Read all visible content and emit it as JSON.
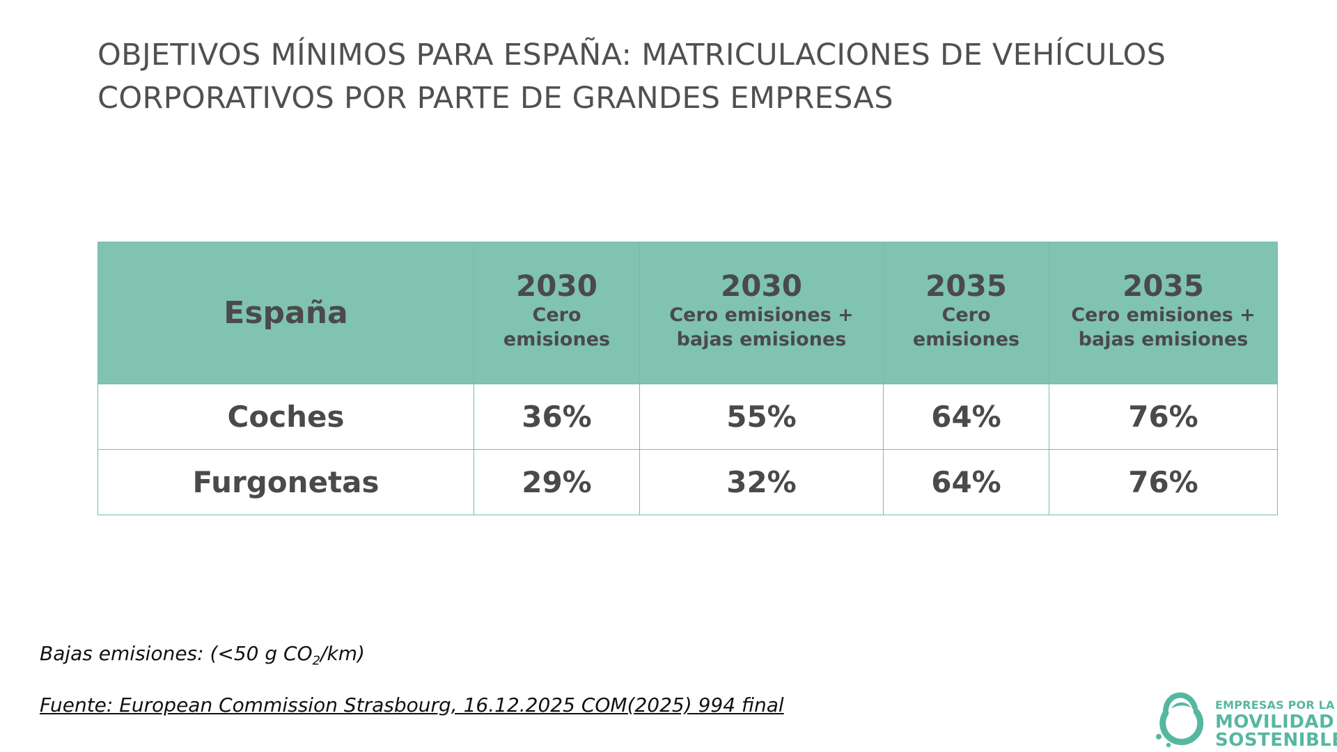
{
  "title": {
    "line1": "OBJETIVOS MÍNIMOS PARA ESPAÑA: MATRICULACIONES DE VEHÍCULOS",
    "line2": "CORPORATIVOS POR PARTE DE GRANDES EMPRESAS"
  },
  "table": {
    "corner_header": "España",
    "columns": [
      {
        "year": "2030",
        "label": "Cero emisiones"
      },
      {
        "year": "2030",
        "label": "Cero emisiones + bajas emisiones"
      },
      {
        "year": "2035",
        "label": "Cero emisiones"
      },
      {
        "year": "2035",
        "label": "Cero emisiones + bajas emisiones"
      }
    ],
    "rows": [
      {
        "label": "Coches",
        "values": [
          "36%",
          "55%",
          "64%",
          "76%"
        ]
      },
      {
        "label": "Furgonetas",
        "values": [
          "29%",
          "32%",
          "64%",
          "76%"
        ]
      }
    ]
  },
  "note": {
    "prefix": "Bajas emisiones: (<50 g CO",
    "subscript": "2",
    "suffix": "/km)"
  },
  "source": "Fuente: European Commission Strasbourg, 16.12.2025 COM(2025) 994 final",
  "logo": {
    "line1": "EMPRESAS POR LA",
    "line2": "MOVILIDAD",
    "line3": "SOSTENIBLE"
  },
  "colors": {
    "header_bg": "#80c3b0",
    "border": "#6fbfaa",
    "text": "#4a4a4a",
    "logo": "#56b7a1"
  }
}
